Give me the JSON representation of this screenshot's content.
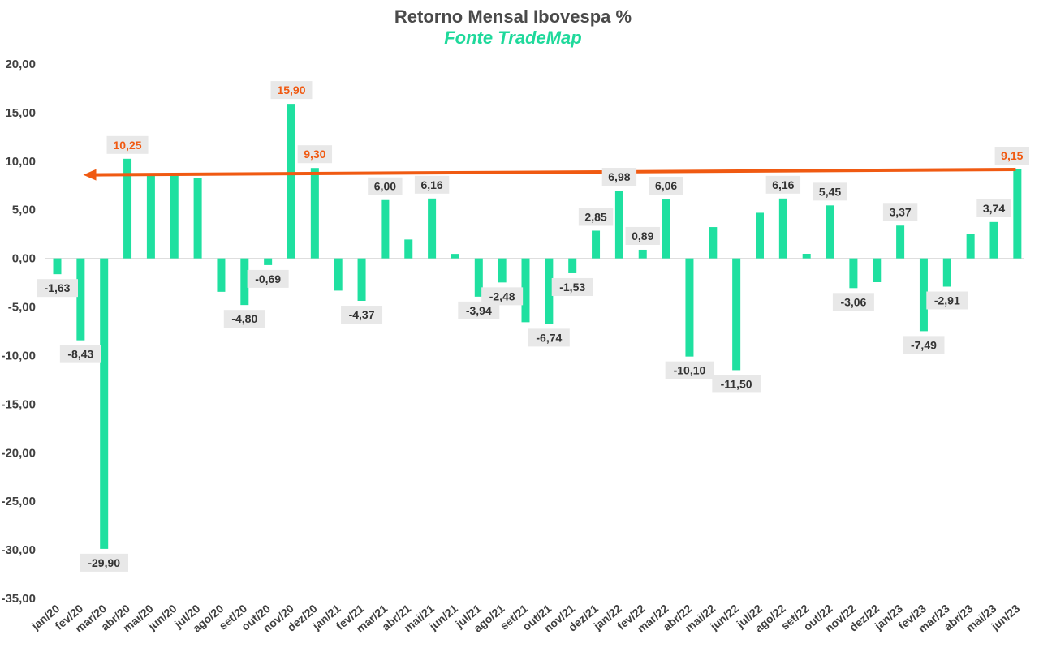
{
  "colors": {
    "bar": "#1fe0a0",
    "arrow": "#f05a12",
    "highlight_label": "#f05a12",
    "label_bg": "#e8e8e8",
    "title": "#4a4a4a",
    "subtitle": "#1fd99b"
  },
  "chart_data": {
    "type": "bar",
    "title": "Retorno Mensal Ibovespa %",
    "subtitle": "Fonte TradeMap",
    "xlabel": "",
    "ylabel": "",
    "ylim": [
      -35,
      20
    ],
    "yticks": [
      "20,00",
      "15,00",
      "10,00",
      "5,00",
      "0,00",
      "-5,00",
      "-10,00",
      "-15,00",
      "-20,00",
      "-25,00",
      "-30,00",
      "-35,00"
    ],
    "grid": false,
    "categories": [
      "jan/20",
      "fev/20",
      "mar/20",
      "abr/20",
      "mai/20",
      "jun/20",
      "jul/20",
      "ago/20",
      "set/20",
      "out/20",
      "nov/20",
      "dez/20",
      "jan/21",
      "fev/21",
      "mar/21",
      "abr/21",
      "mai/21",
      "jun/21",
      "jul/21",
      "ago/21",
      "set/21",
      "out/21",
      "nov/21",
      "dez/21",
      "jan/22",
      "fev/22",
      "mar/22",
      "abr/22",
      "mai/22",
      "jun/22",
      "jul/22",
      "ago/22",
      "set/22",
      "out/22",
      "nov/22",
      "dez/22",
      "jan/23",
      "fev/23",
      "mar/23",
      "abr/23",
      "mai/23",
      "jun/23"
    ],
    "values": [
      -1.63,
      -8.43,
      -29.9,
      10.25,
      8.57,
      8.76,
      8.27,
      -3.44,
      -4.8,
      -0.69,
      15.9,
      9.3,
      -3.32,
      -4.37,
      6.0,
      1.94,
      6.16,
      0.46,
      -3.94,
      -2.48,
      -6.57,
      -6.74,
      -1.53,
      2.85,
      6.98,
      0.89,
      6.06,
      -10.1,
      3.22,
      -11.5,
      4.69,
      6.16,
      0.47,
      5.45,
      -3.06,
      -2.45,
      3.37,
      -7.49,
      -2.91,
      2.5,
      3.74,
      9.15
    ],
    "data_labels": [
      {
        "index": 0,
        "text": "-1,63",
        "highlight": false
      },
      {
        "index": 1,
        "text": "-8,43",
        "highlight": false
      },
      {
        "index": 2,
        "text": "-29,90",
        "highlight": false
      },
      {
        "index": 3,
        "text": "10,25",
        "highlight": true
      },
      {
        "index": 8,
        "text": "-4,80",
        "highlight": false
      },
      {
        "index": 9,
        "text": "-0,69",
        "highlight": false
      },
      {
        "index": 10,
        "text": "15,90",
        "highlight": true
      },
      {
        "index": 11,
        "text": "9,30",
        "highlight": true
      },
      {
        "index": 13,
        "text": "-4,37",
        "highlight": false
      },
      {
        "index": 14,
        "text": "6,00",
        "highlight": false
      },
      {
        "index": 16,
        "text": "6,16",
        "highlight": false
      },
      {
        "index": 18,
        "text": "-3,94",
        "highlight": false
      },
      {
        "index": 19,
        "text": "-2,48",
        "highlight": false
      },
      {
        "index": 21,
        "text": "-6,74",
        "highlight": false
      },
      {
        "index": 22,
        "text": "-1,53",
        "highlight": false
      },
      {
        "index": 23,
        "text": "2,85",
        "highlight": false
      },
      {
        "index": 24,
        "text": "6,98",
        "highlight": false
      },
      {
        "index": 25,
        "text": "0,89",
        "highlight": false
      },
      {
        "index": 26,
        "text": "6,06",
        "highlight": false
      },
      {
        "index": 27,
        "text": "-10,10",
        "highlight": false
      },
      {
        "index": 29,
        "text": "-11,50",
        "highlight": false
      },
      {
        "index": 31,
        "text": "6,16",
        "highlight": false
      },
      {
        "index": 33,
        "text": "5,45",
        "highlight": false
      },
      {
        "index": 34,
        "text": "-3,06",
        "highlight": false
      },
      {
        "index": 36,
        "text": "3,37",
        "highlight": false
      },
      {
        "index": 37,
        "text": "-7,49",
        "highlight": false
      },
      {
        "index": 38,
        "text": "-2,91",
        "highlight": false
      },
      {
        "index": 40,
        "text": "3,74",
        "highlight": false
      },
      {
        "index": 41,
        "text": "9,15",
        "highlight": true
      }
    ],
    "arrow": {
      "from_index": 41,
      "from_value": 9.15,
      "to_index": 0,
      "to_value": 8.6
    }
  }
}
